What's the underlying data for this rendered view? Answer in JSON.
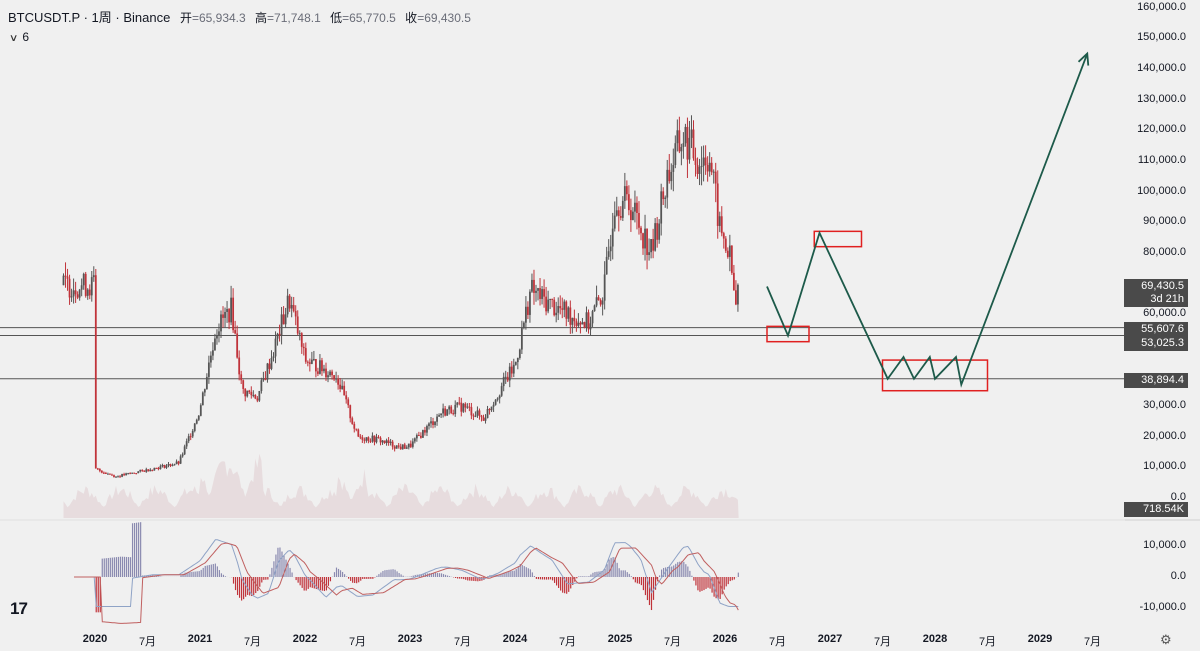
{
  "header": {
    "symbol": "BTCUSDT.P · 1周 · Binance",
    "open_label": "开",
    "open_value": "=65,934.3",
    "high_label": "高",
    "high_value": "=71,748.1",
    "low_label": "低",
    "low_value": "=65,770.5",
    "close_label": "收",
    "close_value": "=69,430.5"
  },
  "indicator": {
    "label": "6"
  },
  "price_axis": [
    "160,000.0",
    "150,000.0",
    "140,000.0",
    "130,000.0",
    "120,000.0",
    "110,000.0",
    "100,000.0",
    "90,000.0",
    "80,000.0",
    "60,000.0",
    "30,000.0",
    "20,000.0",
    "10,000.0",
    "0.0"
  ],
  "price_tags": {
    "last_price": "69,430.5",
    "countdown": "3d 21h",
    "level1": "55,607.6",
    "level2": "53,025.3",
    "level3": "38,894.4",
    "volume": "718.54K"
  },
  "macd_axis": [
    "10,000.0",
    "0.0",
    "-10,000.0"
  ],
  "time_axis": [
    "2020",
    "7月",
    "2021",
    "7月",
    "2022",
    "7月",
    "2023",
    "7月",
    "2024",
    "7月",
    "2025",
    "7月",
    "2026",
    "7月",
    "2027",
    "7月",
    "2028",
    "7月",
    "2029",
    "7月"
  ],
  "logo": "17",
  "colors": {
    "up": "#555555",
    "down": "#c0333a",
    "box": "#e02020",
    "path": "#1d5a4a",
    "tag_dark": "#4a4a4a",
    "tag_black": "#1e1e1e"
  },
  "chart_data": {
    "type": "candlestick",
    "title": "BTCUSDT.P · 1周 · Binance",
    "xlabel": "",
    "ylabel": "",
    "ylim": [
      0,
      160000
    ],
    "price_path": [
      [
        2020.0,
        9500
      ],
      [
        2020.2,
        7000
      ],
      [
        2020.5,
        9200
      ],
      [
        2020.8,
        11500
      ],
      [
        2021.0,
        29000
      ],
      [
        2021.15,
        55000
      ],
      [
        2021.3,
        62000
      ],
      [
        2021.4,
        35000
      ],
      [
        2021.55,
        33000
      ],
      [
        2021.7,
        48000
      ],
      [
        2021.85,
        65000
      ],
      [
        2022.0,
        45000
      ],
      [
        2022.3,
        40000
      ],
      [
        2022.5,
        20000
      ],
      [
        2022.7,
        19000
      ],
      [
        2022.9,
        16500
      ],
      [
        2023.0,
        17000
      ],
      [
        2023.3,
        28000
      ],
      [
        2023.5,
        30000
      ],
      [
        2023.7,
        26000
      ],
      [
        2023.9,
        38000
      ],
      [
        2024.0,
        43000
      ],
      [
        2024.15,
        68000
      ],
      [
        2024.3,
        64000
      ],
      [
        2024.5,
        60000
      ],
      [
        2024.7,
        57000
      ],
      [
        2024.85,
        68000
      ],
      [
        2024.95,
        98000
      ],
      [
        2025.1,
        96000
      ],
      [
        2025.3,
        80000
      ],
      [
        2025.45,
        105000
      ],
      [
        2025.6,
        118000
      ],
      [
        2025.75,
        110000
      ],
      [
        2025.85,
        112000
      ],
      [
        2025.95,
        88000
      ],
      [
        2026.05,
        78000
      ],
      [
        2026.1,
        62000
      ],
      [
        2026.13,
        69430
      ]
    ],
    "levels": [
      55607.6,
      53025.3,
      38894.4
    ],
    "projection": [
      [
        2026.4,
        69000
      ],
      [
        2026.6,
        53000
      ],
      [
        2026.9,
        86500
      ],
      [
        2027.55,
        38894
      ],
      [
        2027.7,
        46000
      ],
      [
        2027.8,
        38894
      ],
      [
        2027.95,
        46000
      ],
      [
        2028.0,
        38894
      ],
      [
        2028.2,
        46000
      ],
      [
        2028.25,
        37000
      ],
      [
        2029.45,
        145000
      ]
    ],
    "boxes": [
      {
        "x0": 2026.4,
        "x1": 2026.8,
        "y0": 51000,
        "y1": 56000
      },
      {
        "x0": 2026.85,
        "x1": 2027.3,
        "y0": 82000,
        "y1": 87000
      },
      {
        "x0": 2027.5,
        "x1": 2028.5,
        "y0": 35000,
        "y1": 45000
      }
    ],
    "macd_ylim": [
      -10000,
      10000
    ]
  }
}
